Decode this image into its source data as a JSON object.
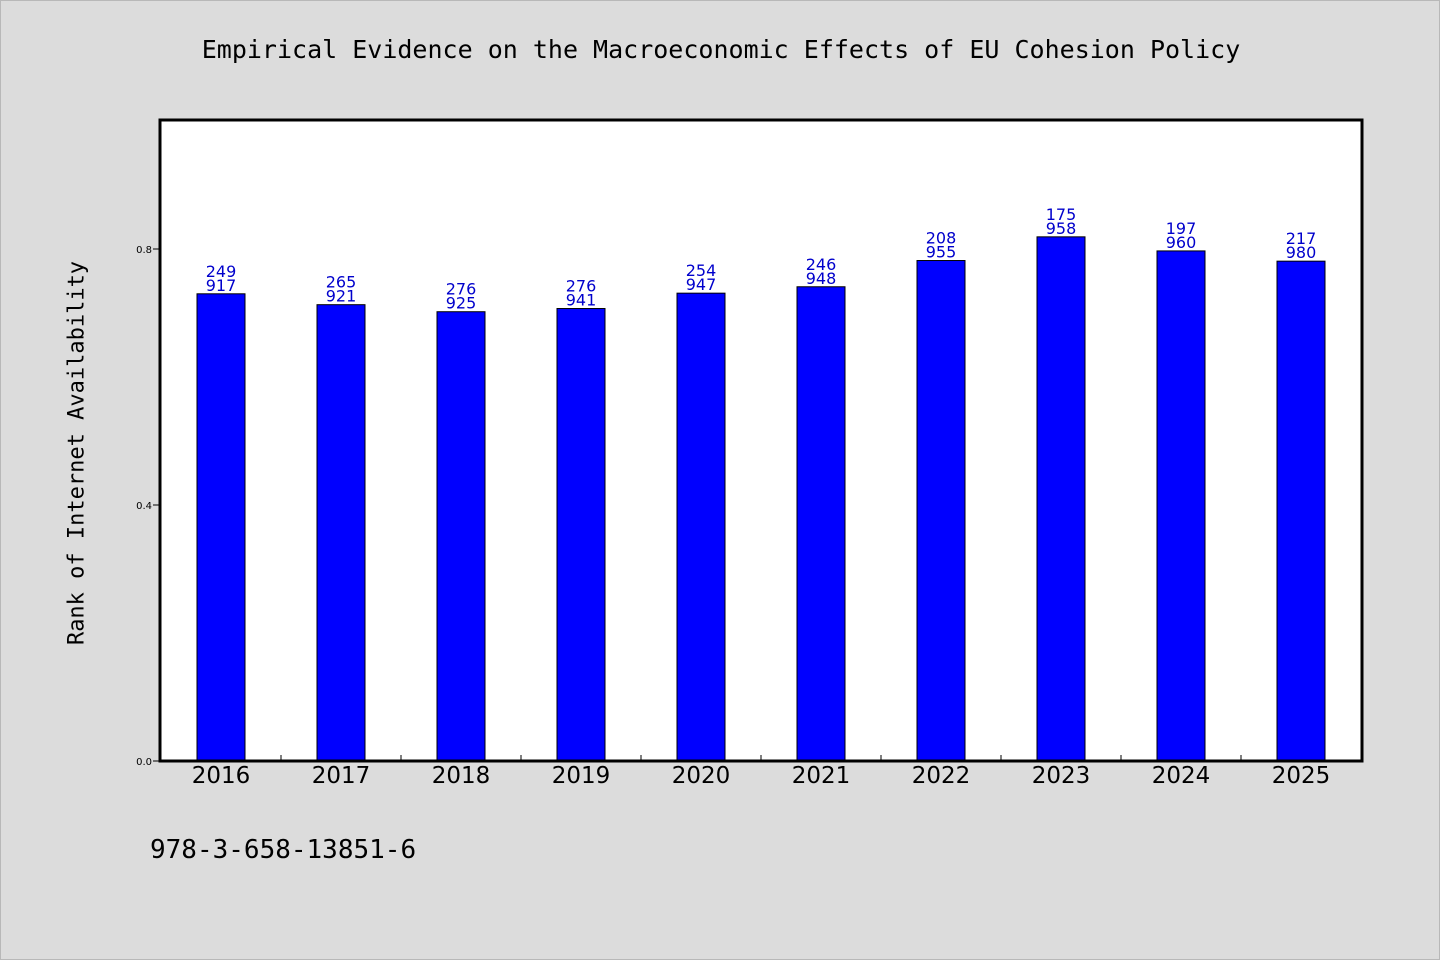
{
  "chart_data": {
    "type": "bar",
    "title": "Empirical Evidence on the Macroeconomic Effects of EU Cohesion Policy",
    "xlabel": "",
    "ylabel": "Rank of Internet Availability",
    "categories": [
      "2016",
      "2017",
      "2018",
      "2019",
      "2020",
      "2021",
      "2022",
      "2023",
      "2024",
      "2025"
    ],
    "values": [
      0.73,
      0.713,
      0.702,
      0.707,
      0.731,
      0.741,
      0.782,
      0.819,
      0.797,
      0.781
    ],
    "bar_labels": [
      [
        "249",
        "917"
      ],
      [
        "265",
        "921"
      ],
      [
        "276",
        "925"
      ],
      [
        "276",
        "941"
      ],
      [
        "254",
        "947"
      ],
      [
        "246",
        "948"
      ],
      [
        "208",
        "955"
      ],
      [
        "175",
        "958"
      ],
      [
        "197",
        "960"
      ],
      [
        "217",
        "980"
      ]
    ],
    "yticks": [
      "0.0",
      "0.4",
      "0.8"
    ],
    "ylim": [
      0,
      1.0
    ],
    "grid": false,
    "legend": "none",
    "colors": {
      "bar": "#0000ff",
      "bar_stroke": "#000000",
      "data_label": "#0000cc",
      "plot_background": "#ffffff",
      "page_background": "#dcdcdc"
    }
  },
  "footer": {
    "code": "978-3-658-13851-6"
  }
}
